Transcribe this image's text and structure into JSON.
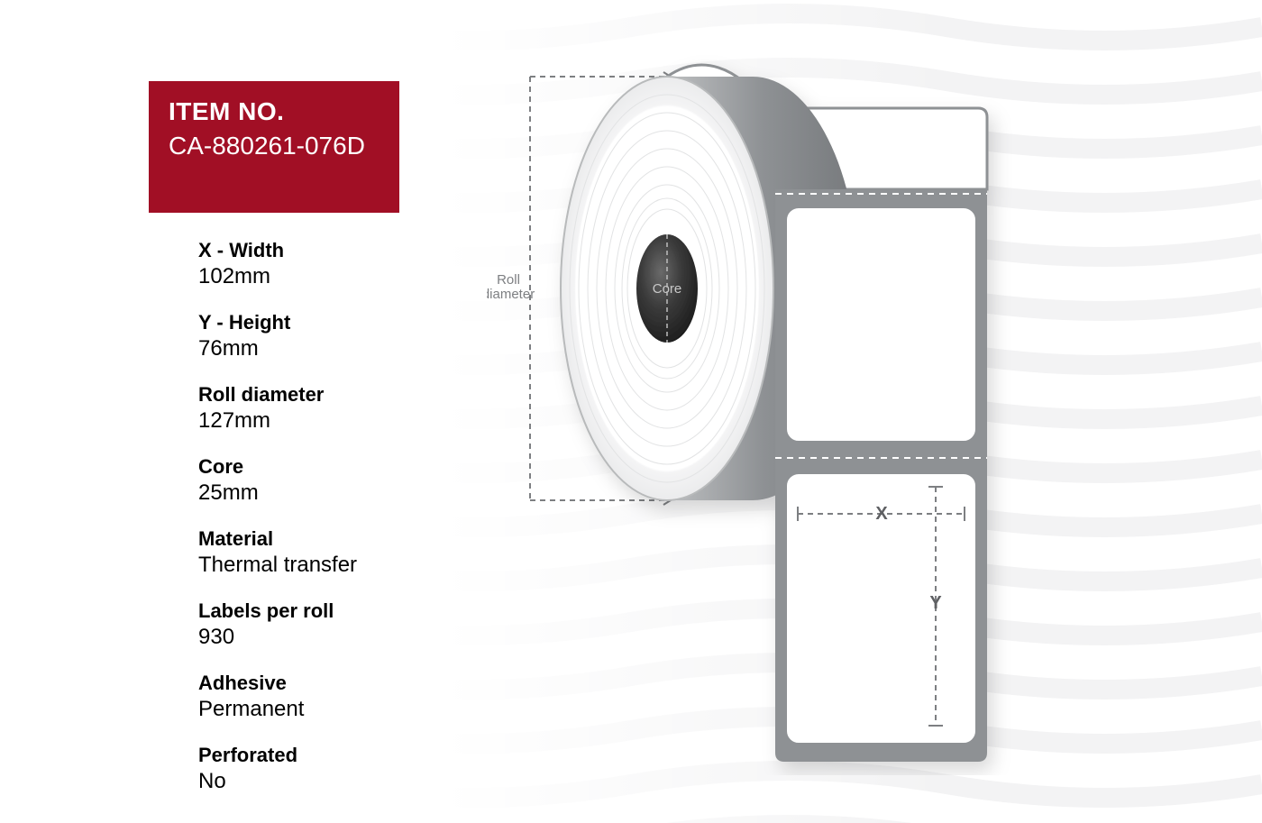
{
  "itemBox": {
    "bg": "#a10f25",
    "title": "ITEM NO.",
    "code": "CA-880261-076D"
  },
  "specs": [
    {
      "label": "X - Width",
      "value": "102mm"
    },
    {
      "label": "Y - Height",
      "value": "76mm"
    },
    {
      "label": "Roll diameter",
      "value": "127mm"
    },
    {
      "label": "Core",
      "value": "25mm"
    },
    {
      "label": "Material",
      "value": "Thermal transfer"
    },
    {
      "label": "Labels per roll",
      "value": "930"
    },
    {
      "label": "Adhesive",
      "value": "Permanent"
    },
    {
      "label": "Perforated",
      "value": "No"
    }
  ],
  "diagram": {
    "rollDiameterLabel": "Roll\ndiameter",
    "coreLabel": "Core",
    "xLabel": "X",
    "yLabel": "Y",
    "colors": {
      "strip": "#8e9194",
      "rollFace": "#ffffff",
      "rollRing": "#d9dadb",
      "rollEdge": "#a7a9ab",
      "coreDark": "#2b2b2b",
      "coreMid": "#555555",
      "dash": "#7d7f82",
      "labelFill": "#ffffff",
      "labelStroke": "#8e9194",
      "text": "#7d7f82"
    }
  },
  "background": {
    "waveColor": "#f3f3f4"
  }
}
